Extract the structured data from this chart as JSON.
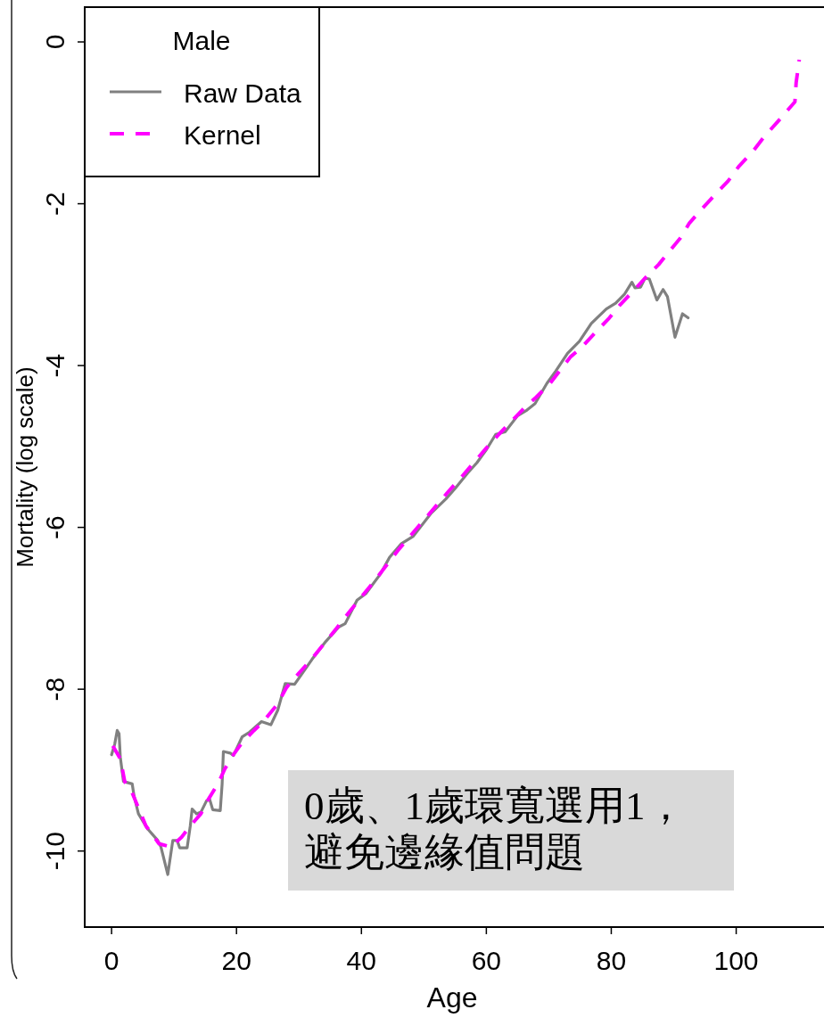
{
  "chart_data": {
    "type": "line",
    "xlabel": "Age",
    "ylabel": "Mortality (log scale)",
    "legend": "top left",
    "legend_title": "Male",
    "xlim": [
      -4.3,
      114.2
    ],
    "ylim": [
      -10.94,
      0.43
    ],
    "xticks": [
      0,
      20,
      40,
      60,
      80,
      100
    ],
    "yticks": [
      0,
      -2,
      -4,
      -6,
      -8,
      -10
    ],
    "annotations": [
      "0歲、1歲環寬選用1，避免邊緣值問題"
    ],
    "series": [
      {
        "name": "Raw Data",
        "color": "#808080",
        "line_style": "solid",
        "x": [
          0,
          0.5,
          0.9,
          1.2,
          1.4,
          1.9,
          3.3,
          3.6,
          4.3,
          5.7,
          7.4,
          7.9,
          9.0,
          9.8,
          10.5,
          10.9,
          12.1,
          12.6,
          12.9,
          13.6,
          14.3,
          15.2,
          15.7,
          16.2,
          17.4,
          17.7,
          17.9,
          19.0,
          19.5,
          20.9,
          22.1,
          24.0,
          25.5,
          26.6,
          27.8,
          29.3,
          32.1,
          34.3,
          36.4,
          37.4,
          39.3,
          40.7,
          43.1,
          44.5,
          46.4,
          48.3,
          51.1,
          53.5,
          55,
          57,
          58.5,
          60,
          61.5,
          63,
          65,
          66.5,
          67.8,
          69.7,
          71.1,
          73.0,
          74.9,
          76.8,
          79.2,
          80.7,
          82.1,
          83.3,
          83.8,
          84.7,
          85.4,
          86.1,
          87.3,
          88.3,
          89.0,
          90.2,
          91.4,
          92.3
        ],
        "values": [
          -8.81,
          -8.68,
          -8.51,
          -8.55,
          -8.84,
          -9.14,
          -9.17,
          -9.32,
          -9.54,
          -9.72,
          -9.87,
          -9.95,
          -10.29,
          -9.87,
          -9.87,
          -9.96,
          -9.96,
          -9.69,
          -9.48,
          -9.54,
          -9.52,
          -9.38,
          -9.36,
          -9.49,
          -9.5,
          -9.17,
          -8.77,
          -8.79,
          -8.82,
          -8.59,
          -8.53,
          -8.4,
          -8.44,
          -8.26,
          -7.93,
          -7.94,
          -7.63,
          -7.41,
          -7.23,
          -7.19,
          -6.9,
          -6.82,
          -6.57,
          -6.37,
          -6.2,
          -6.11,
          -5.83,
          -5.65,
          -5.52,
          -5.33,
          -5.2,
          -5.04,
          -4.85,
          -4.82,
          -4.62,
          -4.55,
          -4.47,
          -4.22,
          -4.07,
          -3.85,
          -3.7,
          -3.48,
          -3.3,
          -3.23,
          -3.12,
          -2.97,
          -3.04,
          -3.03,
          -2.92,
          -2.93,
          -3.19,
          -3.06,
          -3.15,
          -3.65,
          -3.36,
          -3.41
        ]
      },
      {
        "name": "Kernel",
        "color": "#ff00ff",
        "line_style": "dashed",
        "x": [
          0.2,
          1.4,
          2.1,
          3.3,
          5.5,
          7.6,
          9.5,
          11.2,
          12.6,
          14.3,
          15.5,
          17.1,
          18.1,
          19.5,
          20.9,
          22.8,
          24.3,
          26.6,
          28,
          30,
          32,
          34,
          36,
          38,
          40,
          42,
          44,
          46,
          48,
          50,
          52,
          54,
          56,
          58,
          60,
          62,
          64,
          66,
          68,
          70.2,
          71.9,
          73.5,
          75.2,
          77.6,
          79.7,
          81.4,
          83.5,
          85.4,
          87.6,
          89.5,
          91.1,
          92.5,
          94.2,
          96.6,
          98.7,
          100.4,
          102.8,
          104.5,
          106.6,
          108.5,
          109.4,
          109.6,
          110.1
        ],
        "values": [
          -8.7,
          -8.86,
          -9.14,
          -9.28,
          -9.69,
          -9.91,
          -9.95,
          -9.83,
          -9.69,
          -9.54,
          -9.36,
          -9.16,
          -8.99,
          -8.81,
          -8.66,
          -8.51,
          -8.4,
          -8.18,
          -7.98,
          -7.8,
          -7.63,
          -7.44,
          -7.25,
          -7.05,
          -6.86,
          -6.67,
          -6.47,
          -6.27,
          -6.09,
          -5.91,
          -5.73,
          -5.55,
          -5.38,
          -5.2,
          -5.02,
          -4.85,
          -4.69,
          -4.53,
          -4.39,
          -4.22,
          -4.05,
          -3.89,
          -3.78,
          -3.58,
          -3.41,
          -3.25,
          -3.08,
          -2.92,
          -2.75,
          -2.57,
          -2.42,
          -2.24,
          -2.09,
          -1.89,
          -1.72,
          -1.54,
          -1.34,
          -1.17,
          -0.99,
          -0.82,
          -0.74,
          -0.5,
          -0.22
        ]
      }
    ]
  }
}
